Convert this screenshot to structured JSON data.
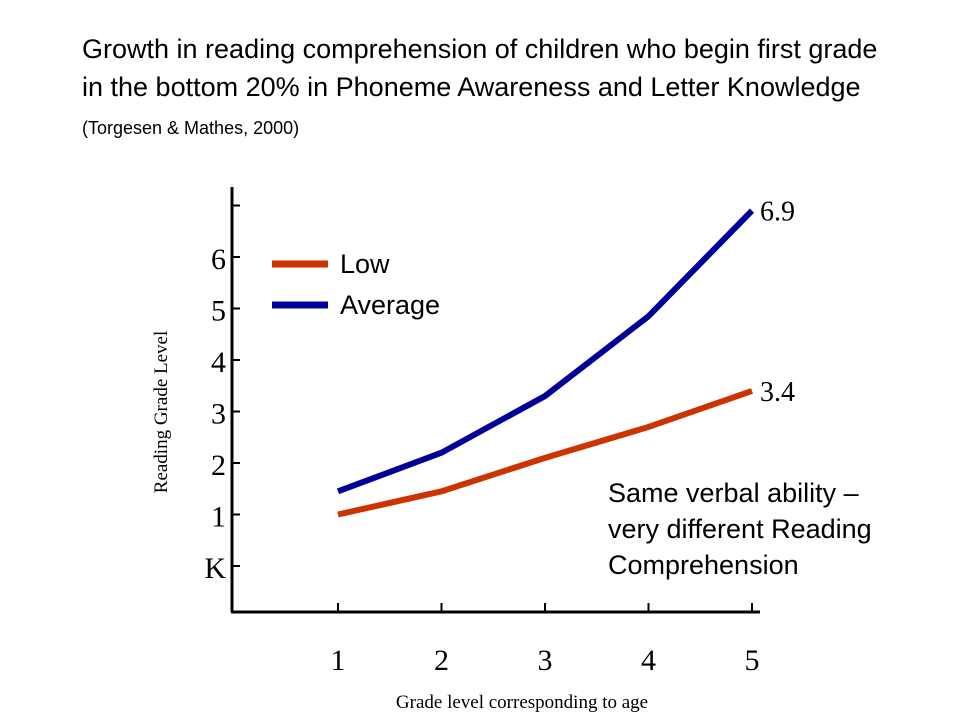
{
  "title": {
    "main": "Growth in reading comprehension of children who begin first grade in the bottom 20% in Phoneme Awareness and Letter Knowledge",
    "citation": "(Torgesen & Mathes, 2000)"
  },
  "annotation": {
    "line1": "Same verbal ability –",
    "line2": "very different Reading",
    "line3": "Comprehension"
  },
  "chart_data": {
    "type": "line",
    "xlabel": "Grade level corresponding to age",
    "ylabel": "Reading Grade Level",
    "categories": [
      "1",
      "2",
      "3",
      "4",
      "5"
    ],
    "y_ticks": [
      "K",
      "1",
      "2",
      "3",
      "4",
      "5",
      "6"
    ],
    "y_tick_values": [
      0,
      1,
      2,
      3,
      4,
      5,
      6
    ],
    "ylim": [
      -1,
      7
    ],
    "grid": false,
    "legend_position": "top-left",
    "series": [
      {
        "name": "Low",
        "color": "#CC3300",
        "values": [
          1.0,
          1.45,
          2.1,
          2.7,
          3.4
        ],
        "end_label": "3.4"
      },
      {
        "name": "Average",
        "color": "#000099",
        "values": [
          1.45,
          2.2,
          3.3,
          4.85,
          6.9
        ],
        "end_label": "6.9"
      }
    ]
  }
}
